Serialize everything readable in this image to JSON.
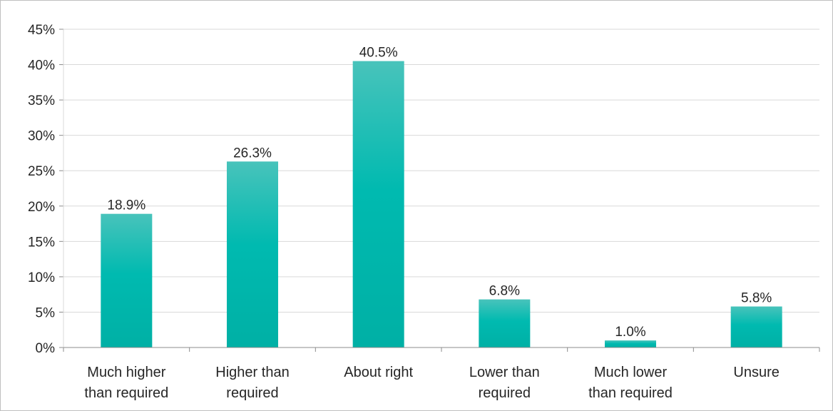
{
  "chart_data": {
    "type": "bar",
    "title": "",
    "xlabel": "",
    "ylabel": "",
    "categories": [
      [
        "Much higher",
        "than required"
      ],
      [
        "Higher than",
        "required"
      ],
      [
        "About right"
      ],
      [
        "Lower than",
        "required"
      ],
      [
        "Much lower",
        "than required"
      ],
      [
        "Unsure"
      ]
    ],
    "values": [
      18.9,
      26.3,
      40.5,
      6.8,
      1.0,
      5.8
    ],
    "data_labels": [
      "18.9%",
      "26.3%",
      "40.5%",
      "6.8%",
      "1.0%",
      "5.8%"
    ],
    "ylim": [
      0,
      45
    ],
    "yticks": [
      0,
      5,
      10,
      15,
      20,
      25,
      30,
      35,
      40,
      45
    ],
    "ytick_labels": [
      "0%",
      "5%",
      "10%",
      "15%",
      "20%",
      "25%",
      "30%",
      "35%",
      "40%",
      "45%"
    ],
    "grid": true,
    "legend": "none",
    "bar_color_top": "#48c3bb",
    "bar_color_bottom": "#00b0a5"
  }
}
